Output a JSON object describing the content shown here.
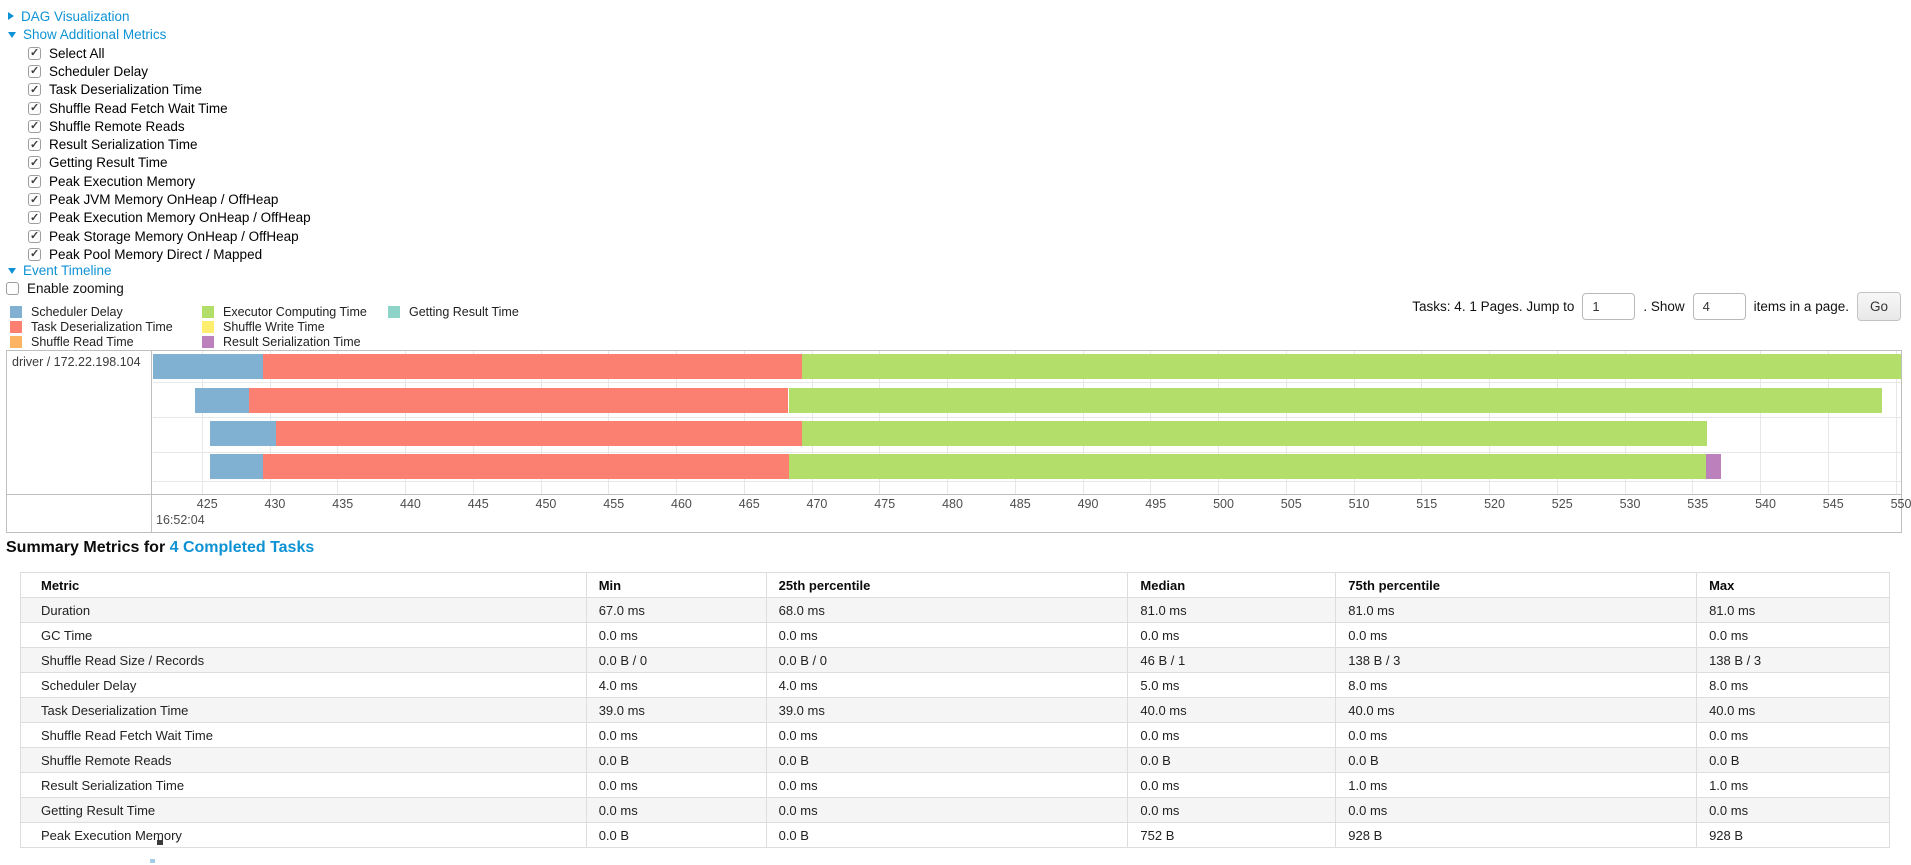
{
  "accent": {
    "link_blue": "#0f92d4"
  },
  "controls": {
    "dag_toggle": {
      "label": "DAG Visualization",
      "state": "collapsed"
    },
    "metrics_toggle": {
      "label": "Show Additional Metrics",
      "state": "expanded"
    },
    "metric_checkboxes": [
      {
        "label": "Select All",
        "checked": true
      },
      {
        "label": "Scheduler Delay",
        "checked": true
      },
      {
        "label": "Task Deserialization Time",
        "checked": true
      },
      {
        "label": "Shuffle Read Fetch Wait Time",
        "checked": true
      },
      {
        "label": "Shuffle Remote Reads",
        "checked": true
      },
      {
        "label": "Result Serialization Time",
        "checked": true
      },
      {
        "label": "Getting Result Time",
        "checked": true
      },
      {
        "label": "Peak Execution Memory",
        "checked": true
      },
      {
        "label": "Peak JVM Memory OnHeap / OffHeap",
        "checked": true
      },
      {
        "label": "Peak Execution Memory OnHeap / OffHeap",
        "checked": true
      },
      {
        "label": "Peak Storage Memory OnHeap / OffHeap",
        "checked": true
      },
      {
        "label": "Peak Pool Memory Direct / Mapped",
        "checked": true
      }
    ],
    "event_timeline_toggle": {
      "label": "Event Timeline",
      "state": "expanded"
    },
    "enable_zooming": {
      "label": "Enable zooming",
      "checked": false
    }
  },
  "pagination": {
    "tasks_text": "Tasks: 4. 1 Pages. Jump to",
    "jump_value": "1",
    "show_text": ". Show",
    "show_value": "4",
    "items_text": "items in a page.",
    "go_label": "Go"
  },
  "chart_data": {
    "type": "timeline",
    "title": "Event Timeline",
    "group_label": "driver / 172.22.198.104",
    "x_axis": {
      "major_label": "16:52:04",
      "unit": "milliseconds within 16:52:04",
      "min": 421.4,
      "max": 550.4,
      "tick_step": 5,
      "ticks": [
        425,
        430,
        435,
        440,
        445,
        450,
        455,
        460,
        465,
        470,
        475,
        480,
        485,
        490,
        495,
        500,
        505,
        510,
        515,
        520,
        525,
        530,
        535,
        540,
        545,
        550
      ]
    },
    "legend": [
      {
        "key": "scheduler_delay",
        "label": "Scheduler Delay",
        "color": "#80B1D3"
      },
      {
        "key": "task_deserialization",
        "label": "Task Deserialization Time",
        "color": "#FB8072"
      },
      {
        "key": "shuffle_read",
        "label": "Shuffle Read Time",
        "color": "#FDB462"
      },
      {
        "key": "executor_computing",
        "label": "Executor Computing Time",
        "color": "#B3DE69"
      },
      {
        "key": "shuffle_write",
        "label": "Shuffle Write Time",
        "color": "#FFED6F"
      },
      {
        "key": "result_serialization",
        "label": "Result Serialization Time",
        "color": "#BC80BD"
      },
      {
        "key": "getting_result",
        "label": "Getting Result Time",
        "color": "#8DD3C7"
      }
    ],
    "tasks": [
      {
        "segments": [
          {
            "key": "scheduler_delay",
            "start": 421.4,
            "end": 429.5
          },
          {
            "key": "task_deserialization",
            "start": 429.5,
            "end": 469.3
          },
          {
            "key": "executor_computing",
            "start": 469.3,
            "end": 550.4
          }
        ]
      },
      {
        "segments": [
          {
            "key": "scheduler_delay",
            "start": 424.5,
            "end": 428.5
          },
          {
            "key": "task_deserialization",
            "start": 428.5,
            "end": 468.3
          },
          {
            "key": "executor_computing",
            "start": 468.3,
            "end": 549.0
          }
        ]
      },
      {
        "segments": [
          {
            "key": "scheduler_delay",
            "start": 425.6,
            "end": 430.5
          },
          {
            "key": "task_deserialization",
            "start": 430.5,
            "end": 469.3
          },
          {
            "key": "executor_computing",
            "start": 469.3,
            "end": 536.1
          }
        ]
      },
      {
        "segments": [
          {
            "key": "scheduler_delay",
            "start": 425.6,
            "end": 429.5
          },
          {
            "key": "task_deserialization",
            "start": 429.5,
            "end": 468.3
          },
          {
            "key": "executor_computing",
            "start": 468.3,
            "end": 536.0
          },
          {
            "key": "result_serialization",
            "start": 536.0,
            "end": 537.1
          }
        ]
      }
    ]
  },
  "summary": {
    "heading_prefix": "Summary Metrics for ",
    "heading_link": "4 Completed Tasks",
    "table": {
      "headers": [
        "Metric",
        "Min",
        "25th percentile",
        "Median",
        "75th percentile",
        "Max"
      ],
      "rows": [
        [
          "Duration",
          "67.0 ms",
          "68.0 ms",
          "81.0 ms",
          "81.0 ms",
          "81.0 ms"
        ],
        [
          "GC Time",
          "0.0 ms",
          "0.0 ms",
          "0.0 ms",
          "0.0 ms",
          "0.0 ms"
        ],
        [
          "Shuffle Read Size / Records",
          "0.0 B / 0",
          "0.0 B / 0",
          "46 B / 1",
          "138 B / 3",
          "138 B / 3"
        ],
        [
          "Scheduler Delay",
          "4.0 ms",
          "4.0 ms",
          "5.0 ms",
          "8.0 ms",
          "8.0 ms"
        ],
        [
          "Task Deserialization Time",
          "39.0 ms",
          "39.0 ms",
          "40.0 ms",
          "40.0 ms",
          "40.0 ms"
        ],
        [
          "Shuffle Read Fetch Wait Time",
          "0.0 ms",
          "0.0 ms",
          "0.0 ms",
          "0.0 ms",
          "0.0 ms"
        ],
        [
          "Shuffle Remote Reads",
          "0.0 B",
          "0.0 B",
          "0.0 B",
          "0.0 B",
          "0.0 B"
        ],
        [
          "Result Serialization Time",
          "0.0 ms",
          "0.0 ms",
          "0.0 ms",
          "1.0 ms",
          "1.0 ms"
        ],
        [
          "Getting Result Time",
          "0.0 ms",
          "0.0 ms",
          "0.0 ms",
          "0.0 ms",
          "0.0 ms"
        ],
        [
          "Peak Execution Memory",
          "0.0 B",
          "0.0 B",
          "752 B",
          "928 B",
          "928 B"
        ]
      ]
    }
  }
}
